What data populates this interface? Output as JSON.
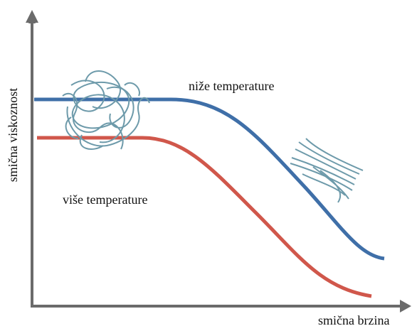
{
  "axes": {
    "y_label": "smična viskoznost",
    "x_label": "smična brzina"
  },
  "curves": {
    "upper_label": "niže temperature",
    "lower_label": "više temperature"
  }
}
